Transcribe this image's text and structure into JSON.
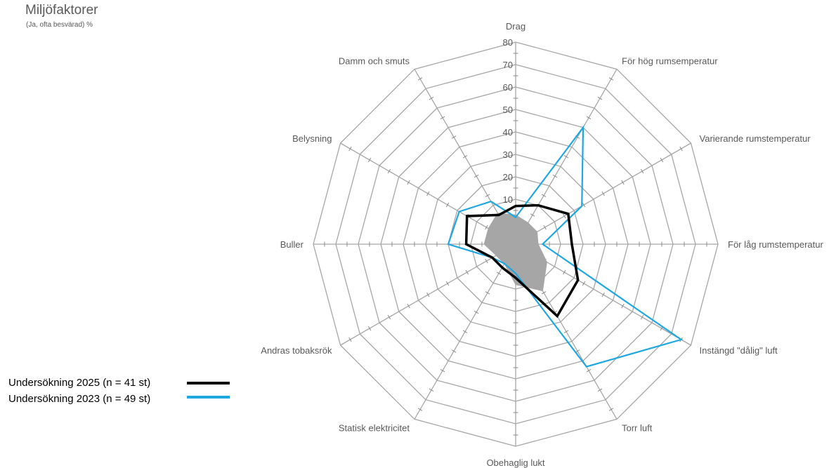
{
  "chart_data": {
    "type": "radar",
    "title": "Miljöfaktorer",
    "subtitle": "(Ja, ofta besvärad) %",
    "categories": [
      "Drag",
      "För hög rumsemperatur",
      "Varierande rumstemperatur",
      "För låg rumstemperatur",
      "Instängd \"dålig\" luft",
      "Torr luft",
      "Obehaglig lukt",
      "Statisk elektricitet",
      "Andras tobaksrök",
      "Buller",
      "Belysning",
      "Damm och smuts"
    ],
    "radial_ticks": [
      "10",
      "0",
      "10",
      "20",
      "30",
      "40",
      "50",
      "60",
      "70",
      "80"
    ],
    "r_min": -10,
    "r_max": 80,
    "series": [
      {
        "name": "Undersökning 2025 (n = 41 st)",
        "color": "#000000",
        "values": [
          7,
          10,
          17,
          15,
          22,
          27,
          5,
          2,
          2,
          12,
          15,
          5
        ]
      },
      {
        "name": "Undersökning 2023 (n = 49 st)",
        "color": "#1fa7e0",
        "values": [
          2,
          50,
          24,
          2,
          75,
          53,
          3,
          0,
          2,
          20,
          19,
          12
        ]
      },
      {
        "name": "",
        "color": "#a6a6a6",
        "values": [
          3,
          1,
          1,
          0,
          6,
          14,
          8,
          0,
          0,
          4,
          4,
          6
        ]
      }
    ]
  }
}
